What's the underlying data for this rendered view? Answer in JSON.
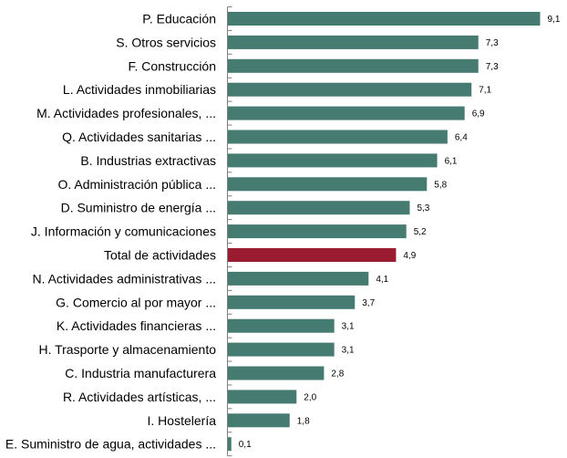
{
  "chart_data": {
    "type": "bar",
    "orientation": "horizontal",
    "categories": [
      "P. Educación",
      "S. Otros servicios",
      "F. Construcción",
      "L. Actividades inmobiliarias",
      "M. Actividades profesionales, ...",
      "Q. Actividades sanitarias ...",
      "B. Industrias extractivas",
      "O. Administración pública ...",
      "D. Suministro de energía ...",
      "J. Información y comunicaciones",
      "Total de actividades",
      "N. Actividades administrativas ...",
      "G. Comercio al por mayor ...",
      "K. Actividades financieras ...",
      "H. Trasporte y almacenamiento",
      "C. Industria manufacturera",
      "R. Actividades artísticas, ...",
      "I. Hostelería",
      "E. Suministro de agua, actividades ..."
    ],
    "values": [
      9.1,
      7.3,
      7.3,
      7.1,
      6.9,
      6.4,
      6.1,
      5.8,
      5.3,
      5.2,
      4.9,
      4.1,
      3.7,
      3.1,
      3.1,
      2.8,
      2.0,
      1.8,
      0.1
    ],
    "value_labels": [
      "9,1",
      "7,3",
      "7,3",
      "7,1",
      "6,9",
      "6,4",
      "6,1",
      "5,8",
      "5,3",
      "5,2",
      "4,9",
      "4,1",
      "3,7",
      "3,1",
      "3,1",
      "2,8",
      "2,0",
      "1,8",
      "0,1"
    ],
    "highlight_category": "Total de actividades",
    "colors": {
      "bar": "#457b71",
      "highlight": "#9b1b30",
      "axis": "#7f7f7f"
    },
    "xlim": [
      0,
      9.1
    ],
    "grid": false,
    "legend": "none"
  }
}
